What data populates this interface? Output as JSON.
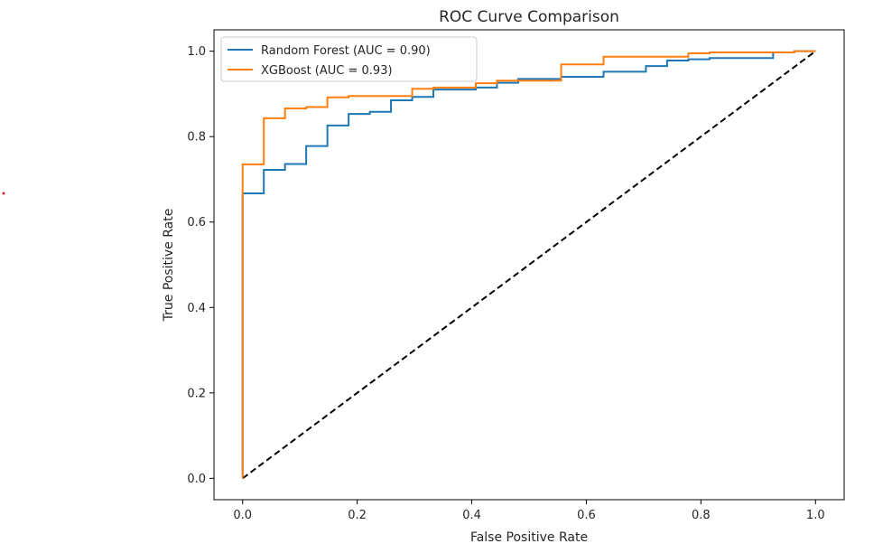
{
  "chart_data": {
    "type": "line",
    "title": "ROC Curve Comparison",
    "xlabel": "False Positive Rate",
    "ylabel": "True Positive Rate",
    "xlim": [
      -0.05,
      1.05
    ],
    "ylim": [
      -0.05,
      1.05
    ],
    "x_ticks": [
      "0.0",
      "0.2",
      "0.4",
      "0.6",
      "0.8",
      "1.0"
    ],
    "y_ticks": [
      "0.0",
      "0.2",
      "0.4",
      "0.6",
      "0.8",
      "1.0"
    ],
    "grid": false,
    "legend_position": "upper-left",
    "series": [
      {
        "name": "Random Forest (AUC = 0.90)",
        "color": "#1f77b4",
        "style": "solid",
        "points": [
          [
            0,
            0
          ],
          [
            0,
            0.667
          ],
          [
            0.037,
            0.667
          ],
          [
            0.037,
            0.722
          ],
          [
            0.074,
            0.722
          ],
          [
            0.074,
            0.736
          ],
          [
            0.111,
            0.736
          ],
          [
            0.111,
            0.778
          ],
          [
            0.148,
            0.778
          ],
          [
            0.148,
            0.826
          ],
          [
            0.185,
            0.826
          ],
          [
            0.185,
            0.853
          ],
          [
            0.222,
            0.853
          ],
          [
            0.222,
            0.858
          ],
          [
            0.259,
            0.858
          ],
          [
            0.259,
            0.885
          ],
          [
            0.296,
            0.885
          ],
          [
            0.296,
            0.893
          ],
          [
            0.333,
            0.893
          ],
          [
            0.333,
            0.91
          ],
          [
            0.407,
            0.91
          ],
          [
            0.407,
            0.915
          ],
          [
            0.444,
            0.915
          ],
          [
            0.444,
            0.926
          ],
          [
            0.481,
            0.926
          ],
          [
            0.481,
            0.935
          ],
          [
            0.556,
            0.935
          ],
          [
            0.556,
            0.94
          ],
          [
            0.63,
            0.94
          ],
          [
            0.63,
            0.952
          ],
          [
            0.704,
            0.952
          ],
          [
            0.704,
            0.965
          ],
          [
            0.741,
            0.965
          ],
          [
            0.741,
            0.978
          ],
          [
            0.778,
            0.978
          ],
          [
            0.778,
            0.981
          ],
          [
            0.815,
            0.981
          ],
          [
            0.815,
            0.984
          ],
          [
            0.926,
            0.984
          ],
          [
            0.926,
            0.997
          ],
          [
            0.963,
            0.997
          ],
          [
            0.963,
            1.0
          ],
          [
            1.0,
            1.0
          ]
        ]
      },
      {
        "name": "XGBoost (AUC = 0.93)",
        "color": "#ff7f0e",
        "style": "solid",
        "points": [
          [
            0,
            0
          ],
          [
            0,
            0.735
          ],
          [
            0.037,
            0.735
          ],
          [
            0.037,
            0.843
          ],
          [
            0.074,
            0.843
          ],
          [
            0.074,
            0.866
          ],
          [
            0.111,
            0.866
          ],
          [
            0.111,
            0.869
          ],
          [
            0.148,
            0.869
          ],
          [
            0.148,
            0.892
          ],
          [
            0.185,
            0.892
          ],
          [
            0.185,
            0.895
          ],
          [
            0.296,
            0.895
          ],
          [
            0.296,
            0.912
          ],
          [
            0.333,
            0.912
          ],
          [
            0.333,
            0.915
          ],
          [
            0.407,
            0.915
          ],
          [
            0.407,
            0.925
          ],
          [
            0.444,
            0.925
          ],
          [
            0.444,
            0.931
          ],
          [
            0.556,
            0.931
          ],
          [
            0.556,
            0.969
          ],
          [
            0.63,
            0.969
          ],
          [
            0.63,
            0.987
          ],
          [
            0.778,
            0.987
          ],
          [
            0.778,
            0.995
          ],
          [
            0.815,
            0.995
          ],
          [
            0.815,
            0.997
          ],
          [
            0.963,
            0.997
          ],
          [
            0.963,
            1.0
          ],
          [
            1.0,
            1.0
          ]
        ]
      },
      {
        "name": "",
        "color": "#000000",
        "style": "dashed",
        "points": [
          [
            0,
            0
          ],
          [
            1,
            1
          ]
        ]
      }
    ]
  }
}
